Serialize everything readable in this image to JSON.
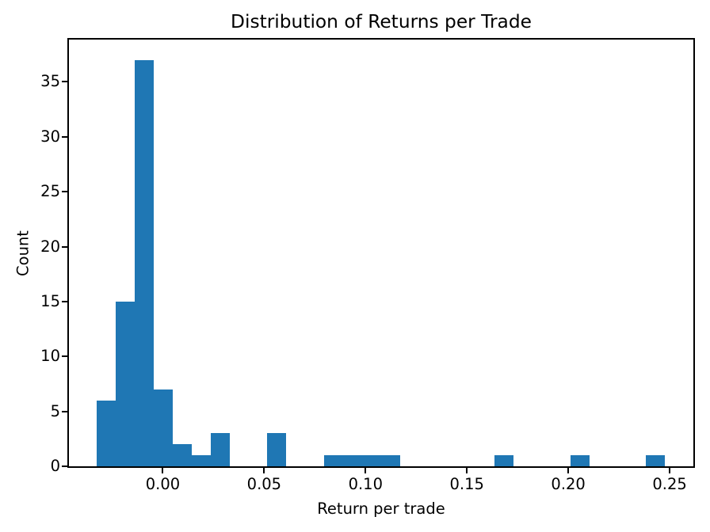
{
  "chart_data": {
    "type": "bar",
    "subtype": "histogram",
    "title": "Distribution of Returns per Trade",
    "xlabel": "Return per trade",
    "ylabel": "Count",
    "bar_color": "#1f77b4",
    "background_color": "#ffffff",
    "axis_color": "#000000",
    "grid": false,
    "legend_position": "none",
    "xlim": [
      -0.0463,
      0.2617
    ],
    "ylim": [
      0,
      38.85
    ],
    "x_ticks": [
      0.0,
      0.05,
      0.1,
      0.15,
      0.2,
      0.25
    ],
    "x_tick_labels": [
      "0.00",
      "0.05",
      "0.10",
      "0.15",
      "0.20",
      "0.25"
    ],
    "y_ticks": [
      0,
      5,
      10,
      15,
      20,
      25,
      30,
      35
    ],
    "y_tick_labels": [
      "0",
      "5",
      "10",
      "15",
      "20",
      "25",
      "30",
      "35"
    ],
    "bin_start": -0.0325,
    "bin_width": 0.00934,
    "num_bins": 30,
    "counts": [
      6,
      15,
      37,
      7,
      2,
      1,
      3,
      0,
      0,
      3,
      0,
      0,
      1,
      1,
      1,
      1,
      0,
      0,
      0,
      0,
      0,
      1,
      0,
      0,
      0,
      1,
      0,
      0,
      0,
      1
    ]
  }
}
